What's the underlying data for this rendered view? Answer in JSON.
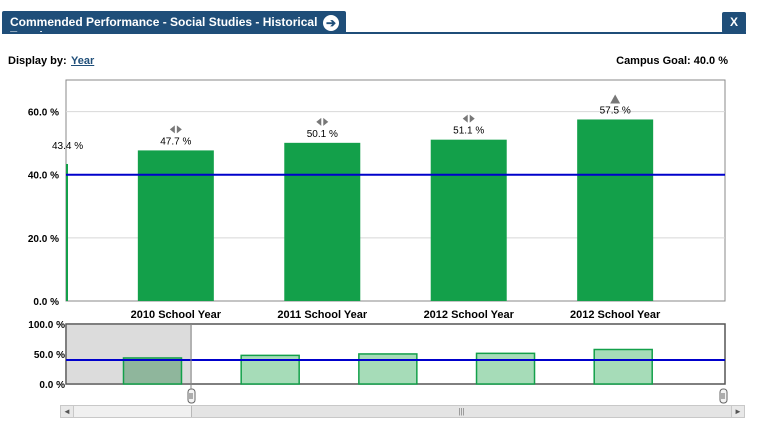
{
  "header": {
    "title": "Commended Performance - Social Studies - Historical Trends",
    "arrow_glyph": "➔",
    "close_label": "X"
  },
  "controls": {
    "display_by_label": "Display by:",
    "display_by_value": "Year",
    "campus_goal": "Campus Goal: 40.0 %"
  },
  "chart_data": {
    "type": "bar",
    "categories": [
      "2010 School Year",
      "2011 School Year",
      "2012 School Year",
      "2012 School Year"
    ],
    "values": [
      47.7,
      50.1,
      51.1,
      57.5
    ],
    "value_labels": [
      "47.7 %",
      "50.1 %",
      "51.1 %",
      "57.5 %"
    ],
    "trend_icons": [
      "neutral",
      "neutral",
      "neutral",
      "up"
    ],
    "left_edge_value": 43.4,
    "left_edge_label": "43.4 %",
    "goal": 40.0,
    "ylim": [
      0,
      70
    ],
    "yticks": [
      0,
      20,
      40,
      60
    ],
    "ytick_labels": [
      "0.0 %",
      "20.0 %",
      "40.0 %",
      "60.0 %"
    ],
    "bar_color": "#13a04a",
    "goal_color": "#0000cc",
    "grid": true,
    "navigator": {
      "ylim": [
        0,
        100
      ],
      "yticks": [
        0,
        50,
        100
      ],
      "ytick_labels": [
        "0.0 %",
        "50.0 %",
        "100.0 %"
      ],
      "values": [
        43.4,
        47.7,
        50.1,
        51.1,
        57.5
      ],
      "bar_color": "#a6dcb8",
      "bar_border": "#13a04a"
    }
  },
  "scrollbar": {
    "left_arrow": "◄",
    "right_arrow": "►",
    "grip": "|||"
  }
}
